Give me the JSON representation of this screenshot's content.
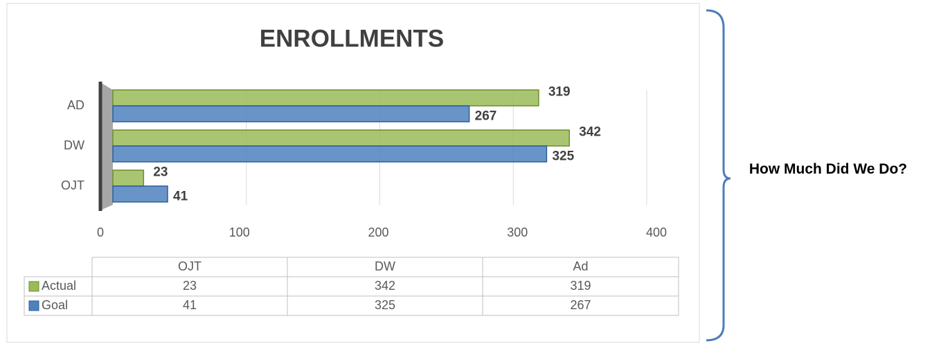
{
  "chart_data": {
    "type": "bar",
    "orientation": "horizontal",
    "title": "ENROLLMENTS",
    "categories": [
      "OJT",
      "DW",
      "AD"
    ],
    "series": [
      {
        "name": "Actual",
        "color": "#9bbb59",
        "values": [
          23,
          342,
          319
        ]
      },
      {
        "name": "Goal",
        "color": "#4f81bd",
        "values": [
          41,
          325,
          267
        ]
      }
    ],
    "xlim": [
      0,
      400
    ],
    "xticks": [
      0,
      100,
      200,
      300,
      400
    ],
    "grid": true,
    "data_table": {
      "columns": [
        "OJT",
        "DW",
        "Ad"
      ]
    }
  },
  "side_note": "How Much Did We Do?"
}
